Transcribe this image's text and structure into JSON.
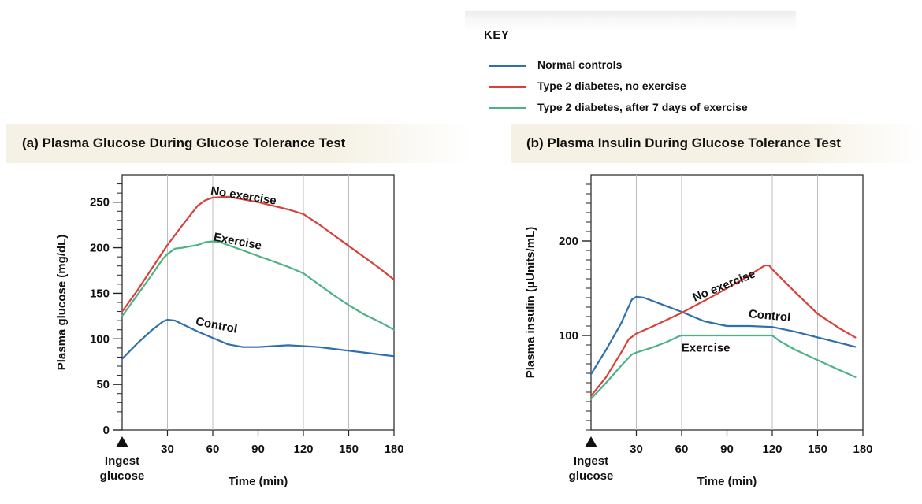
{
  "key": {
    "title": "KEY",
    "entries": [
      {
        "label": "Normal controls",
        "color": "#2e6fad"
      },
      {
        "label": "Type 2 diabetes, no exercise",
        "color": "#d8413a"
      },
      {
        "label": "Type 2 diabetes, after 7 days of exercise",
        "color": "#4db386"
      }
    ]
  },
  "chart_data": [
    {
      "type": "line",
      "title": "(a) Plasma Glucose During Glucose Tolerance Test",
      "xlabel": "Time (min)",
      "ylabel": "Plasma glucose (mg/dL)",
      "xlim": [
        0,
        180
      ],
      "ylim": [
        0,
        280
      ],
      "xticks": [
        30,
        60,
        90,
        120,
        150,
        180
      ],
      "yticks": [
        0,
        50,
        100,
        150,
        200,
        250
      ],
      "start_marker": "Ingest glucose",
      "series": [
        {
          "name": "Normal controls",
          "label": "Control",
          "color": "#2e6fad",
          "x": [
            0,
            10,
            20,
            27,
            30,
            35,
            40,
            50,
            60,
            70,
            80,
            90,
            100,
            110,
            120,
            130,
            140,
            150,
            160,
            170,
            180
          ],
          "y": [
            78,
            95,
            110,
            119,
            121,
            120,
            116,
            108,
            101,
            94,
            91,
            91,
            92,
            93,
            92,
            91,
            89,
            87,
            85,
            83,
            81
          ]
        },
        {
          "name": "Type 2 diabetes, no exercise",
          "label": "No exercise",
          "color": "#d8413a",
          "x": [
            0,
            10,
            20,
            30,
            40,
            50,
            55,
            60,
            70,
            80,
            90,
            100,
            110,
            120,
            130,
            140,
            150,
            160,
            170,
            180
          ],
          "y": [
            130,
            153,
            178,
            203,
            225,
            246,
            252,
            255,
            256,
            253,
            250,
            246,
            242,
            237,
            226,
            214,
            202,
            190,
            178,
            165
          ]
        },
        {
          "name": "Type 2 diabetes, after 7 days of exercise",
          "label": "Exercise",
          "color": "#4db386",
          "x": [
            0,
            10,
            20,
            27,
            30,
            35,
            40,
            50,
            55,
            60,
            65,
            70,
            80,
            90,
            100,
            110,
            120,
            130,
            140,
            150,
            160,
            170,
            180
          ],
          "y": [
            125,
            148,
            171,
            188,
            193,
            199,
            200,
            203,
            206,
            207,
            206,
            203,
            197,
            191,
            185,
            179,
            172,
            160,
            148,
            137,
            127,
            119,
            110
          ]
        }
      ],
      "labels": [
        {
          "text": "No exercise",
          "x": 80,
          "y": 253,
          "angle": 9
        },
        {
          "text": "Exercise",
          "x": 76,
          "y": 203,
          "angle": 11
        },
        {
          "text": "Control",
          "x": 62,
          "y": 111,
          "angle": 11
        }
      ]
    },
    {
      "type": "line",
      "title": "(b) Plasma Insulin During Glucose Tolerance Test",
      "xlabel": "Time (min)",
      "ylabel": "Plasma insulin (μUnits/mL)",
      "xlim": [
        0,
        180
      ],
      "ylim": [
        0,
        270
      ],
      "xticks": [
        30,
        60,
        90,
        120,
        150,
        180
      ],
      "yticks": [
        100,
        200
      ],
      "start_marker": "Ingest glucose",
      "series": [
        {
          "name": "Normal controls",
          "label": "Control",
          "color": "#2e6fad",
          "x": [
            0,
            10,
            20,
            27,
            30,
            35,
            45,
            60,
            75,
            90,
            105,
            120,
            135,
            150,
            165,
            175
          ],
          "y": [
            59,
            85,
            113,
            138,
            141,
            140,
            134,
            125,
            115,
            110,
            110,
            109,
            104,
            98,
            92,
            88
          ]
        },
        {
          "name": "Type 2 diabetes, no exercise",
          "label": "No exercise",
          "color": "#d8413a",
          "x": [
            0,
            10,
            20,
            25,
            30,
            40,
            60,
            80,
            100,
            110,
            115,
            118,
            120,
            125,
            135,
            150,
            165,
            175
          ],
          "y": [
            36,
            56,
            82,
            96,
            102,
            109,
            124,
            141,
            159,
            169,
            174,
            174,
            170,
            162,
            146,
            123,
            107,
            98
          ]
        },
        {
          "name": "Type 2 diabetes, after 7 days of exercise",
          "label": "Exercise",
          "color": "#4db386",
          "x": [
            0,
            10,
            20,
            27,
            30,
            40,
            50,
            58,
            60,
            90,
            110,
            120,
            125,
            135,
            150,
            165,
            175
          ],
          "y": [
            33,
            50,
            68,
            80,
            82,
            87,
            93,
            99,
            100,
            100,
            100,
            100,
            94,
            85,
            74,
            63,
            56
          ]
        }
      ],
      "labels": [
        {
          "text": "No exercise",
          "x": 89,
          "y": 149,
          "angle": -22
        },
        {
          "text": "Control",
          "x": 118,
          "y": 117,
          "angle": 5
        },
        {
          "text": "Exercise",
          "x": 76,
          "y": 83,
          "angle": 0
        }
      ]
    }
  ]
}
